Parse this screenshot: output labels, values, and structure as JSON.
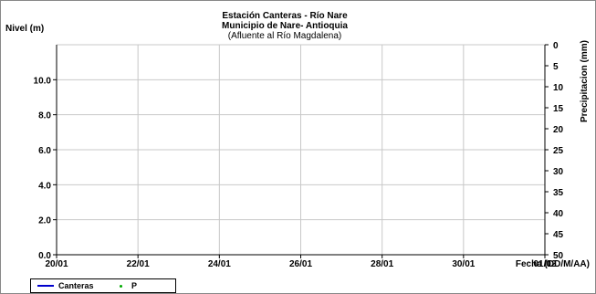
{
  "chart_data": {
    "type": "line",
    "title": "Estación Canteras - Río Nare",
    "subtitle": "Municipio de Nare- Antioquia",
    "subtitle2": "(Afluente al Río Magdalena)",
    "ylabel": "Nivel (m)",
    "y2label": "Precipitacion (mm)",
    "xlabel": "Fecha (DD/M/AA)",
    "x_ticks": [
      "20/01",
      "22/01",
      "24/01",
      "26/01",
      "28/01",
      "30/01",
      "01/02"
    ],
    "y_ticks": [
      "0.0",
      "2.0",
      "4.0",
      "6.0",
      "8.0",
      "10.0"
    ],
    "ylim": [
      0,
      12
    ],
    "y2_ticks": [
      "0",
      "5",
      "10",
      "15",
      "20",
      "25",
      "30",
      "35",
      "40",
      "45",
      "50"
    ],
    "y2lim": [
      0,
      50
    ],
    "y2_inverted": true,
    "grid": true,
    "legend_position": "bottom-left",
    "series": [
      {
        "name": "Canteras",
        "color": "#0000cc",
        "axis": "left",
        "values": []
      },
      {
        "name": "P",
        "color": "#00aa00",
        "axis": "right",
        "values": []
      }
    ]
  }
}
